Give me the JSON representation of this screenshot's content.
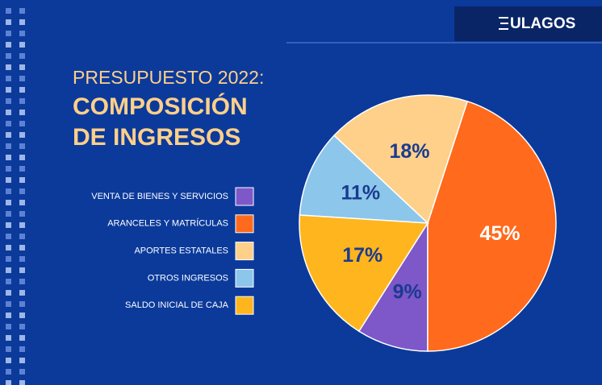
{
  "logo": "ULAGOS",
  "chart_data": {
    "type": "pie",
    "title": "PRESUPUESTO 2022:",
    "subtitle": [
      "COMPOSICIÓN",
      "DE INGRESOS"
    ],
    "categories": [
      "VENTA DE BIENES Y SERVICIOS",
      "ARANCELES Y MATRÍCULAS",
      "APORTES ESTATALES",
      "OTROS INGRESOS",
      "SALDO INICIAL DE CAJA"
    ],
    "values": [
      9,
      45,
      18,
      11,
      17
    ],
    "value_labels": [
      "9%",
      "45%",
      "18%",
      "11%",
      "17%"
    ],
    "colors": [
      "#7e57c8",
      "#ff6a1c",
      "#ffd08a",
      "#8cc6ea",
      "#ffb51e"
    ],
    "label_colors": [
      "#1a3b8f",
      "#ffffff",
      "#1a3b8f",
      "#1a3b8f",
      "#1a3b8f"
    ],
    "start_angle": 212.4,
    "direction": "counterclockwise",
    "legend": "left"
  }
}
